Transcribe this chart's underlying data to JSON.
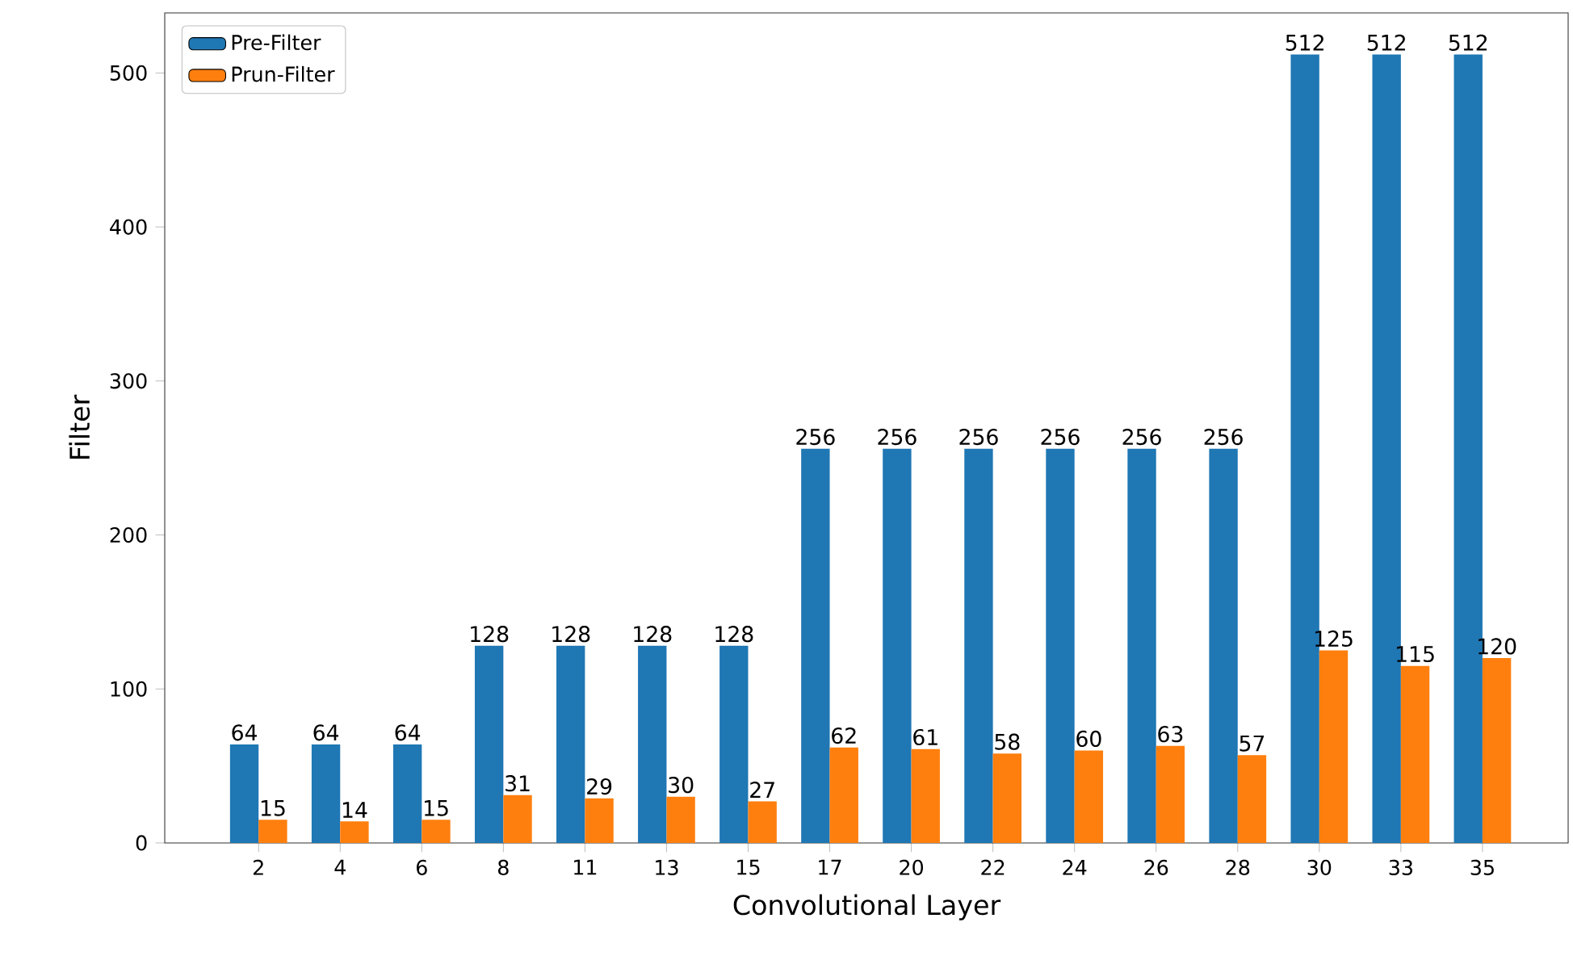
{
  "chart_data": {
    "type": "bar",
    "xlabel": "Convolutional Layer",
    "ylabel": "Filter",
    "categories": [
      "2",
      "4",
      "6",
      "8",
      "11",
      "13",
      "15",
      "17",
      "20",
      "22",
      "24",
      "26",
      "28",
      "30",
      "33",
      "35"
    ],
    "series": [
      {
        "name": "Pre-Filter",
        "color": "#1f77b4",
        "values": [
          64,
          64,
          64,
          128,
          128,
          128,
          128,
          256,
          256,
          256,
          256,
          256,
          256,
          512,
          512,
          512
        ]
      },
      {
        "name": "Prun-Filter",
        "color": "#ff7f0e",
        "values": [
          15,
          14,
          15,
          31,
          29,
          30,
          27,
          62,
          61,
          58,
          60,
          63,
          57,
          125,
          115,
          120
        ]
      }
    ],
    "ylim": [
      0,
      539
    ],
    "yticks": [
      0,
      100,
      200,
      300,
      400,
      500
    ],
    "data_labels": true,
    "legend": "top left",
    "grid": false
  }
}
